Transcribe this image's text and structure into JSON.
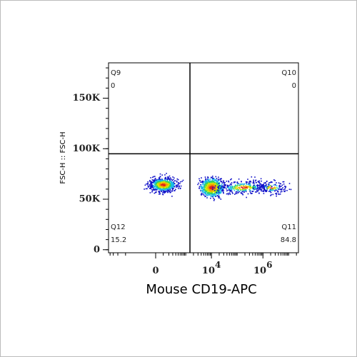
{
  "chart_data": {
    "type": "flow-density",
    "x_label": "Mouse CD19-APC",
    "y_label": "FSC-H :: FSC-H",
    "xscale": "biexponential",
    "xlim": [
      -4600,
      24000000
    ],
    "ylim": [
      -3000,
      185000
    ],
    "xticks": [
      {
        "value": 0,
        "label": "0"
      },
      {
        "value": 10000,
        "label": "10",
        "exponent": "4"
      },
      {
        "value": 1000000,
        "label": "10",
        "exponent": "6"
      }
    ],
    "yticks": [
      {
        "value": 0,
        "label": "0"
      },
      {
        "value": 50000,
        "label": "50K"
      },
      {
        "value": 100000,
        "label": "100K"
      },
      {
        "value": 150000,
        "label": "150K"
      }
    ],
    "gate": {
      "x": 1460,
      "y": 95000
    },
    "quadrants": [
      {
        "name": "Q9",
        "value": 0
      },
      {
        "name": "Q10",
        "value": 0
      },
      {
        "name": "Q11",
        "value": 84.8
      },
      {
        "name": "Q12",
        "value": 15.2
      }
    ]
  }
}
